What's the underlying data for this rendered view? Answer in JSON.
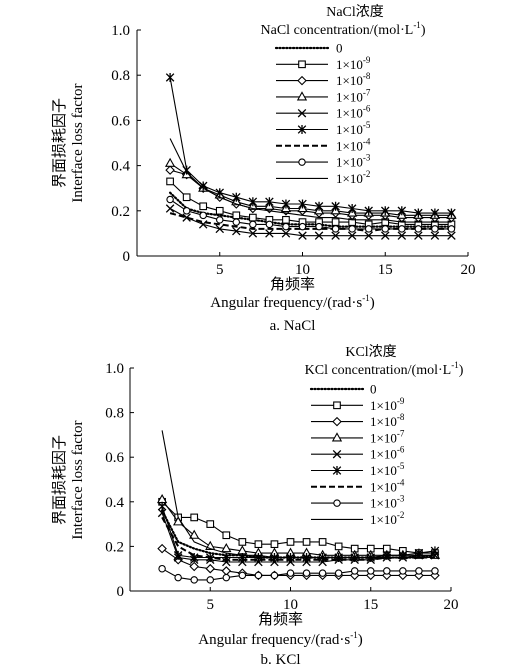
{
  "chart_data": [
    {
      "type": "line",
      "caption": "a. NaCl",
      "xlabel_cn": "角频率",
      "xlabel": "Angular frequency/(rad·s",
      "xlabel_sup": "-1",
      "xlabel_end": ")",
      "ylabel_cn": "界面损耗因子",
      "ylabel": "Interface loss factor",
      "legend_title_cn": "NaCl浓度",
      "legend_title": "NaCl concentration/(mol·L",
      "legend_title_sup": "-1",
      "legend_title_end": ")",
      "xlim": [
        0,
        20
      ],
      "ylim": [
        0,
        1.0
      ],
      "x_ticks": [
        "5",
        "10",
        "15",
        "20"
      ],
      "y_ticks": [
        "0",
        "0.2",
        "0.4",
        "0.6",
        "0.8",
        "1.0"
      ],
      "x": [
        2,
        3,
        4,
        5,
        6,
        7,
        8,
        9,
        10,
        11,
        12,
        13,
        14,
        15,
        16,
        17,
        18,
        19
      ],
      "series": [
        {
          "name": "0",
          "name_base": "0",
          "name_sup": "",
          "marker": "none",
          "dash": "dots",
          "values": [
            0.28,
            0.21,
            0.19,
            0.18,
            0.17,
            0.16,
            0.15,
            0.14,
            0.14,
            0.14,
            0.13,
            0.13,
            0.13,
            0.13,
            0.13,
            0.13,
            0.13,
            0.13
          ]
        },
        {
          "name": "1×10-9",
          "name_base": "1×10",
          "name_sup": "-9",
          "marker": "square",
          "dash": "solid",
          "values": [
            0.33,
            0.26,
            0.22,
            0.2,
            0.18,
            0.17,
            0.16,
            0.16,
            0.15,
            0.15,
            0.15,
            0.15,
            0.14,
            0.15,
            0.14,
            0.14,
            0.14,
            0.14
          ]
        },
        {
          "name": "1×10-8",
          "name_base": "1×10",
          "name_sup": "-8",
          "marker": "diamond",
          "dash": "solid",
          "values": [
            0.38,
            0.36,
            0.3,
            0.26,
            0.23,
            0.21,
            0.21,
            0.2,
            0.2,
            0.19,
            0.19,
            0.18,
            0.18,
            0.18,
            0.17,
            0.17,
            0.17,
            0.17
          ]
        },
        {
          "name": "1×10-7",
          "name_base": "1×10",
          "name_sup": "-7",
          "marker": "triangle",
          "dash": "solid",
          "values": [
            0.41,
            0.36,
            0.3,
            0.27,
            0.24,
            0.22,
            0.22,
            0.21,
            0.21,
            0.2,
            0.2,
            0.19,
            0.19,
            0.19,
            0.18,
            0.18,
            0.18,
            0.18
          ]
        },
        {
          "name": "1×10-6",
          "name_base": "1×10",
          "name_sup": "-6",
          "marker": "x",
          "dash": "solid",
          "values": [
            0.21,
            0.17,
            0.14,
            0.12,
            0.11,
            0.1,
            0.1,
            0.1,
            0.09,
            0.09,
            0.09,
            0.09,
            0.09,
            0.09,
            0.09,
            0.09,
            0.09,
            0.09
          ]
        },
        {
          "name": "1×10-5",
          "name_base": "1×10",
          "name_sup": "-5",
          "marker": "star",
          "dash": "solid",
          "values": [
            0.79,
            0.38,
            0.31,
            0.28,
            0.26,
            0.24,
            0.24,
            0.23,
            0.23,
            0.22,
            0.22,
            0.21,
            0.2,
            0.2,
            0.2,
            0.19,
            0.19,
            0.19
          ]
        },
        {
          "name": "1×10-4",
          "name_base": "1×10",
          "name_sup": "-4",
          "marker": "none",
          "dash": "dashed",
          "values": [
            0.19,
            0.17,
            0.15,
            0.14,
            0.13,
            0.12,
            0.12,
            0.12,
            0.12,
            0.12,
            0.12,
            0.12,
            0.11,
            0.12,
            0.12,
            0.12,
            0.12,
            0.12
          ]
        },
        {
          "name": "1×10-3",
          "name_base": "1×10",
          "name_sup": "-3",
          "marker": "circle",
          "dash": "solid",
          "values": [
            0.25,
            0.2,
            0.18,
            0.16,
            0.15,
            0.14,
            0.14,
            0.13,
            0.13,
            0.13,
            0.12,
            0.12,
            0.12,
            0.12,
            0.12,
            0.12,
            0.12,
            0.12
          ]
        },
        {
          "name": "1×10-2",
          "name_base": "1×10",
          "name_sup": "-2",
          "marker": "none",
          "dash": "solid",
          "values": [
            0.52,
            0.37,
            0.3,
            0.26,
            0.23,
            0.21,
            0.2,
            0.19,
            0.18,
            0.17,
            0.17,
            0.16,
            0.16,
            0.16,
            0.15,
            0.15,
            0.15,
            0.15
          ]
        }
      ]
    },
    {
      "type": "line",
      "caption": "b. KCl",
      "xlabel_cn": "角频率",
      "xlabel": "Angular frequency/(rad·s",
      "xlabel_sup": "-1",
      "xlabel_end": ")",
      "ylabel_cn": "界面损耗因子",
      "ylabel": "Interface loss factor",
      "legend_title_cn": "KCl浓度",
      "legend_title": "KCl concentration/(mol·L",
      "legend_title_sup": "-1",
      "legend_title_end": ")",
      "xlim": [
        0,
        20
      ],
      "ylim": [
        0,
        1.0
      ],
      "x_ticks": [
        "5",
        "10",
        "15",
        "20"
      ],
      "y_ticks": [
        "0",
        "0.2",
        "0.4",
        "0.6",
        "0.8",
        "1.0"
      ],
      "x": [
        2,
        3,
        4,
        5,
        6,
        7,
        8,
        9,
        10,
        11,
        12,
        13,
        14,
        15,
        16,
        17,
        18,
        19
      ],
      "series": [
        {
          "name": "0",
          "name_base": "0",
          "name_sup": "",
          "marker": "none",
          "dash": "dots",
          "values": [
            0.36,
            0.22,
            0.19,
            0.17,
            0.16,
            0.16,
            0.15,
            0.15,
            0.15,
            0.15,
            0.15,
            0.15,
            0.15,
            0.15,
            0.15,
            0.15,
            0.15,
            0.16
          ]
        },
        {
          "name": "1×10-9",
          "name_base": "1×10",
          "name_sup": "-9",
          "marker": "square",
          "dash": "solid",
          "values": [
            0.4,
            0.33,
            0.33,
            0.3,
            0.25,
            0.22,
            0.21,
            0.21,
            0.22,
            0.22,
            0.22,
            0.2,
            0.19,
            0.19,
            0.19,
            0.18,
            0.17,
            0.17
          ]
        },
        {
          "name": "1×10-8",
          "name_base": "1×10",
          "name_sup": "-8",
          "marker": "diamond",
          "dash": "solid",
          "values": [
            0.19,
            0.14,
            0.11,
            0.1,
            0.09,
            0.08,
            0.07,
            0.07,
            0.07,
            0.07,
            0.07,
            0.07,
            0.07,
            0.07,
            0.07,
            0.07,
            0.07,
            0.07
          ]
        },
        {
          "name": "1×10-7",
          "name_base": "1×10",
          "name_sup": "-7",
          "marker": "triangle",
          "dash": "solid",
          "values": [
            0.41,
            0.31,
            0.25,
            0.2,
            0.19,
            0.18,
            0.17,
            0.17,
            0.17,
            0.17,
            0.16,
            0.16,
            0.16,
            0.16,
            0.16,
            0.16,
            0.16,
            0.16
          ]
        },
        {
          "name": "1×10-6",
          "name_base": "1×10",
          "name_sup": "-6",
          "marker": "x",
          "dash": "solid",
          "values": [
            0.35,
            0.15,
            0.14,
            0.14,
            0.13,
            0.13,
            0.13,
            0.13,
            0.13,
            0.13,
            0.13,
            0.14,
            0.14,
            0.14,
            0.15,
            0.15,
            0.16,
            0.16
          ]
        },
        {
          "name": "1×10-5",
          "name_base": "1×10",
          "name_sup": "-5",
          "marker": "star",
          "dash": "solid",
          "values": [
            0.38,
            0.16,
            0.15,
            0.15,
            0.15,
            0.15,
            0.15,
            0.15,
            0.15,
            0.15,
            0.15,
            0.15,
            0.15,
            0.15,
            0.16,
            0.16,
            0.17,
            0.18
          ]
        },
        {
          "name": "1×10-4",
          "name_base": "1×10",
          "name_sup": "-4",
          "marker": "none",
          "dash": "dashed",
          "values": [
            0.33,
            0.2,
            0.16,
            0.15,
            0.14,
            0.14,
            0.14,
            0.14,
            0.14,
            0.14,
            0.14,
            0.14,
            0.14,
            0.14,
            0.15,
            0.15,
            0.15,
            0.15
          ]
        },
        {
          "name": "1×10-3",
          "name_base": "1×10",
          "name_sup": "-3",
          "marker": "circle",
          "dash": "solid",
          "values": [
            0.1,
            0.06,
            0.05,
            0.05,
            0.06,
            0.07,
            0.07,
            0.07,
            0.08,
            0.08,
            0.08,
            0.08,
            0.09,
            0.09,
            0.09,
            0.09,
            0.09,
            0.09
          ]
        },
        {
          "name": "1×10-2",
          "name_base": "1×10",
          "name_sup": "-2",
          "marker": "none",
          "dash": "solid",
          "values": [
            0.72,
            0.33,
            0.22,
            0.19,
            0.17,
            0.16,
            0.16,
            0.15,
            0.15,
            0.15,
            0.15,
            0.15,
            0.15,
            0.15,
            0.15,
            0.15,
            0.15,
            0.15
          ]
        }
      ]
    }
  ]
}
